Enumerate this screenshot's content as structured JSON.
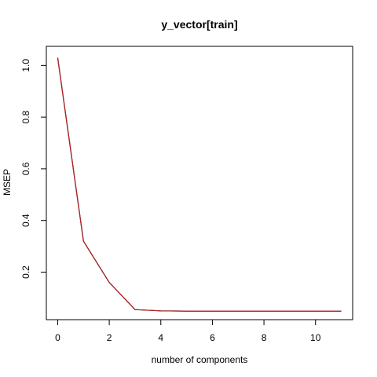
{
  "chart_data": {
    "type": "line",
    "title": "y_vector[train]",
    "xlabel": "number of components",
    "ylabel": "MSEP",
    "xlim": [
      -0.44,
      11.44
    ],
    "ylim": [
      0.016,
      1.074
    ],
    "xticks": [
      "0",
      "2",
      "4",
      "6",
      "8",
      "10"
    ],
    "yticks": [
      "0.2",
      "0.4",
      "0.6",
      "0.8",
      "1.0"
    ],
    "x": [
      0,
      1,
      2,
      3,
      4,
      5,
      6,
      7,
      8,
      9,
      10,
      11
    ],
    "series": [
      {
        "values": [
          1.03,
          0.32,
          0.16,
          0.055,
          0.05,
          0.049,
          0.049,
          0.049,
          0.049,
          0.049,
          0.049,
          0.049
        ],
        "color": "#000000"
      },
      {
        "values": [
          1.03,
          0.32,
          0.16,
          0.055,
          0.05,
          0.049,
          0.049,
          0.049,
          0.049,
          0.049,
          0.049,
          0.049
        ],
        "color": "#b22222"
      }
    ],
    "grid": false,
    "legend": "none"
  }
}
